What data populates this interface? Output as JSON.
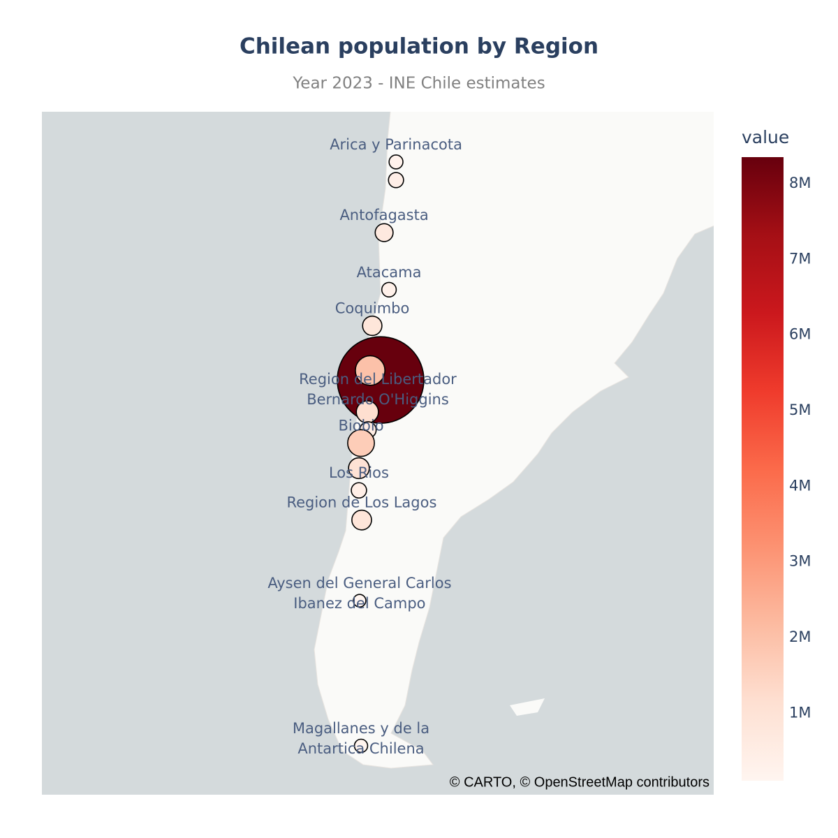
{
  "chart_data": {
    "type": "scatter_map",
    "title": "Chilean population by Region",
    "subtitle": "Year 2023 - INE Chile estimates",
    "attribution": "© CARTO, © OpenStreetMap contributors",
    "colorbar_title": "value",
    "colorscale": "Reds",
    "labels": [
      "Arica y Parinacota",
      null,
      "Antofagasta",
      "Atacama",
      "Coquimbo",
      [
        "Region del Libertador",
        "Bernardo O'Higgins"
      ],
      null,
      null,
      null,
      null,
      "Biobio",
      null,
      "Los Rios",
      "Region de Los Lagos",
      [
        "Aysen del General Carlos",
        "Ibanez del Campo"
      ],
      [
        "Magallanes y de la",
        "Antartica Chilena"
      ]
    ],
    "lat": [
      -18.5,
      -19.8,
      -23.5,
      -27.4,
      -29.8,
      -34.35,
      -33.3,
      -32.7,
      -35.3,
      -36.4,
      -37.2,
      -38.7,
      -40.0,
      -41.7,
      -46.1,
      -53.2
    ],
    "lon": [
      -70.32,
      -70.32,
      -71.22,
      -70.85,
      -72.12,
      -71.7,
      -71.49,
      -72.28,
      -72.49,
      -72.44,
      -72.97,
      -73.13,
      -73.13,
      -72.92,
      -73.08,
      -72.97
    ],
    "values": [
      253000,
      391000,
      700000,
      320000,
      860000,
      1000000,
      8350000,
      2000000,
      1170000,
      520000,
      1680000,
      1020000,
      410000,
      900000,
      108000,
      180000
    ],
    "clim": [
      108000,
      8350000
    ],
    "cticks": [
      {
        "value": 1000000,
        "label": "1M"
      },
      {
        "value": 2000000,
        "label": "2M"
      },
      {
        "value": 3000000,
        "label": "3M"
      },
      {
        "value": 4000000,
        "label": "4M"
      },
      {
        "value": 5000000,
        "label": "5M"
      },
      {
        "value": 6000000,
        "label": "6M"
      },
      {
        "value": 7000000,
        "label": "7M"
      },
      {
        "value": 8000000,
        "label": "8M"
      }
    ]
  }
}
